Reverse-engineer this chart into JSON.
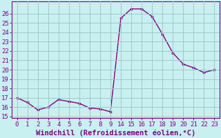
{
  "x_labels": [
    "0",
    "1",
    "2",
    "3",
    "4",
    "5",
    "6",
    "7",
    "8",
    "9",
    "14",
    "15",
    "16",
    "17",
    "18",
    "19",
    "20",
    "21",
    "22",
    "23"
  ],
  "y": [
    17.0,
    16.5,
    15.7,
    16.0,
    16.8,
    16.6,
    16.4,
    15.9,
    15.8,
    15.5,
    25.5,
    26.5,
    26.5,
    25.7,
    23.8,
    21.8,
    20.6,
    20.2,
    19.7,
    20.0
  ],
  "line_color": "#800080",
  "marker_color": "#800080",
  "bg_color": "#c8f0f0",
  "grid_color": "#a0c8c8",
  "xlabel": "Windchill (Refroidissement éolien,°C)",
  "xlabel_color": "#800080",
  "tick_color": "#800080",
  "ylim": [
    15,
    27
  ],
  "yticks": [
    15,
    16,
    17,
    18,
    19,
    20,
    21,
    22,
    23,
    24,
    25,
    26
  ],
  "spine_color": "#800080",
  "font_size": 6.5,
  "xlabel_fontsize": 7.5
}
